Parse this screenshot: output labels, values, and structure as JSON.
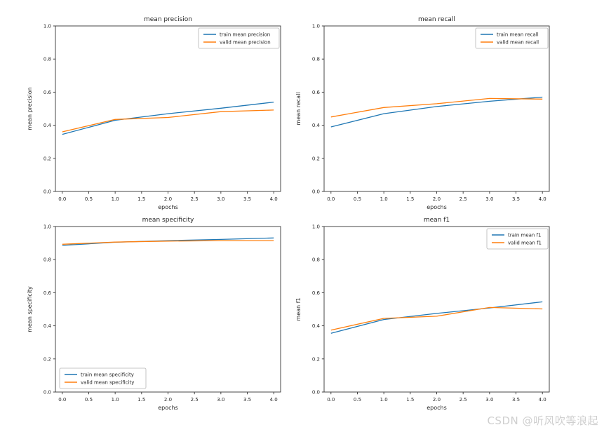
{
  "page": {
    "background": "#ffffff"
  },
  "watermark": {
    "text": "CSDN @听风吹等浪起",
    "color": "#cfcfcf"
  },
  "colors": {
    "text": "#262626",
    "spine": "#333333",
    "tick": "#333333",
    "legend_border": "#b5b5b5",
    "legend_bg": "#ffffff",
    "train": "#1f77b4",
    "valid": "#ff7f0e"
  },
  "chart_data": [
    {
      "type": "line",
      "title": "mean precision",
      "xlabel": "epochs",
      "ylabel": "mean precision",
      "x": [
        0,
        1,
        2,
        3,
        4
      ],
      "xlim": [
        -0.13,
        4.13
      ],
      "ylim": [
        0,
        1
      ],
      "xticks": [
        0.0,
        0.5,
        1.0,
        1.5,
        2.0,
        2.5,
        3.0,
        3.5,
        4.0
      ],
      "yticks": [
        0.0,
        0.2,
        0.4,
        0.6,
        0.8,
        1.0
      ],
      "grid": false,
      "legend_position": "top-right",
      "series": [
        {
          "name": "train mean precision",
          "color": "#1f77b4",
          "values": [
            0.345,
            0.43,
            0.47,
            0.503,
            0.54
          ]
        },
        {
          "name": "valid mean precision",
          "color": "#ff7f0e",
          "values": [
            0.36,
            0.435,
            0.447,
            0.482,
            0.492
          ]
        }
      ]
    },
    {
      "type": "line",
      "title": "mean recall",
      "xlabel": "epochs",
      "ylabel": "mean recall",
      "x": [
        0,
        1,
        2,
        3,
        4
      ],
      "xlim": [
        -0.13,
        4.13
      ],
      "ylim": [
        0,
        1
      ],
      "xticks": [
        0.0,
        0.5,
        1.0,
        1.5,
        2.0,
        2.5,
        3.0,
        3.5,
        4.0
      ],
      "yticks": [
        0.0,
        0.2,
        0.4,
        0.6,
        0.8,
        1.0
      ],
      "grid": false,
      "legend_position": "top-right",
      "series": [
        {
          "name": "train mean recall",
          "color": "#1f77b4",
          "values": [
            0.39,
            0.47,
            0.513,
            0.545,
            0.57
          ]
        },
        {
          "name": "valid mean recall",
          "color": "#ff7f0e",
          "values": [
            0.45,
            0.507,
            0.53,
            0.562,
            0.558
          ]
        }
      ]
    },
    {
      "type": "line",
      "title": "mean specificity",
      "xlabel": "epochs",
      "ylabel": "mean specificity",
      "x": [
        0,
        1,
        2,
        3,
        4
      ],
      "xlim": [
        -0.13,
        4.13
      ],
      "ylim": [
        0,
        1
      ],
      "xticks": [
        0.0,
        0.5,
        1.0,
        1.5,
        2.0,
        2.5,
        3.0,
        3.5,
        4.0
      ],
      "yticks": [
        0.0,
        0.2,
        0.4,
        0.6,
        0.8,
        1.0
      ],
      "grid": false,
      "legend_position": "bottom-left",
      "series": [
        {
          "name": "train mean specificity",
          "color": "#1f77b4",
          "values": [
            0.886,
            0.905,
            0.915,
            0.922,
            0.931
          ]
        },
        {
          "name": "valid mean specificity",
          "color": "#ff7f0e",
          "values": [
            0.893,
            0.906,
            0.912,
            0.915,
            0.915
          ]
        }
      ]
    },
    {
      "type": "line",
      "title": "mean f1",
      "xlabel": "epochs",
      "ylabel": "mean f1",
      "x": [
        0,
        1,
        2,
        3,
        4
      ],
      "xlim": [
        -0.13,
        4.13
      ],
      "ylim": [
        0,
        1
      ],
      "xticks": [
        0.0,
        0.5,
        1.0,
        1.5,
        2.0,
        2.5,
        3.0,
        3.5,
        4.0
      ],
      "yticks": [
        0.0,
        0.2,
        0.4,
        0.6,
        0.8,
        1.0
      ],
      "grid": false,
      "legend_position": "top-right",
      "series": [
        {
          "name": "train mean f1",
          "color": "#1f77b4",
          "values": [
            0.355,
            0.438,
            0.475,
            0.508,
            0.545
          ]
        },
        {
          "name": "valid mean f1",
          "color": "#ff7f0e",
          "values": [
            0.374,
            0.445,
            0.458,
            0.511,
            0.502
          ]
        }
      ]
    }
  ]
}
